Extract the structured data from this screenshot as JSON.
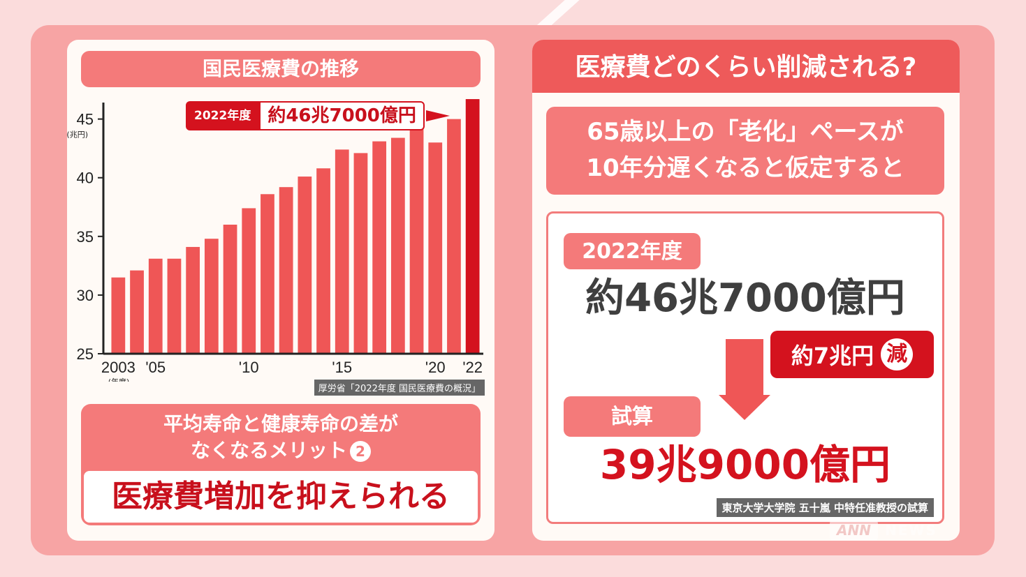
{
  "colors": {
    "bar": "#ef5656",
    "bar_highlight": "#d4121e",
    "panel_bg": "#fffaf6",
    "accent_red": "#d4121e"
  },
  "left": {
    "chart_title": "国民医療費の推移",
    "callout_year": "2022年度",
    "callout_value": "約46兆7000億円",
    "source": "厚労省「2022年度 国民医療費の概況」",
    "merit_line1": "平均寿命と健康寿命の差が",
    "merit_line2": "なくなるメリット",
    "merit_num": "2",
    "merit_main": "医療費増加を抑えられる"
  },
  "chart_data": {
    "type": "bar",
    "title": "国民医療費の推移",
    "ylabel": "(兆円)",
    "xlabel": "(年度)",
    "ylim": [
      25,
      47
    ],
    "yticks": [
      25,
      30,
      35,
      40,
      45
    ],
    "categories": [
      "2003",
      "2004",
      "2005",
      "2006",
      "2007",
      "2008",
      "2009",
      "2010",
      "2011",
      "2012",
      "2013",
      "2014",
      "2015",
      "2016",
      "2017",
      "2018",
      "2019",
      "2020",
      "2021",
      "2022"
    ],
    "xtick_labels": [
      {
        "category": "2003",
        "label": "2003"
      },
      {
        "category": "2005",
        "label": "'05"
      },
      {
        "category": "2010",
        "label": "'10"
      },
      {
        "category": "2015",
        "label": "'15"
      },
      {
        "category": "2020",
        "label": "'20"
      },
      {
        "category": "2022",
        "label": "'22"
      }
    ],
    "values": [
      31.5,
      32.1,
      33.1,
      33.1,
      34.1,
      34.8,
      36.0,
      37.4,
      38.6,
      39.2,
      40.1,
      40.8,
      42.4,
      42.1,
      43.1,
      43.4,
      44.4,
      43.0,
      45.0,
      46.7
    ],
    "highlight_index": 19
  },
  "right": {
    "title": "医療費どのくらい削減される?",
    "assumption_line1": "65歳以上の「老化」ペースが",
    "assumption_line2": "10年分遅くなると仮定すると",
    "tag_year": "2022年度",
    "value_2022": "約46兆7000億円",
    "reduction": "約7兆円",
    "reduction_mark": "減",
    "tag_estimate": "試算",
    "value_estimate": "39兆9000億円",
    "source": "東京大学大学院 五十嵐 中特任准教授の試算"
  },
  "watermark": {
    "logo": "ANN",
    "text": "NEWS"
  }
}
